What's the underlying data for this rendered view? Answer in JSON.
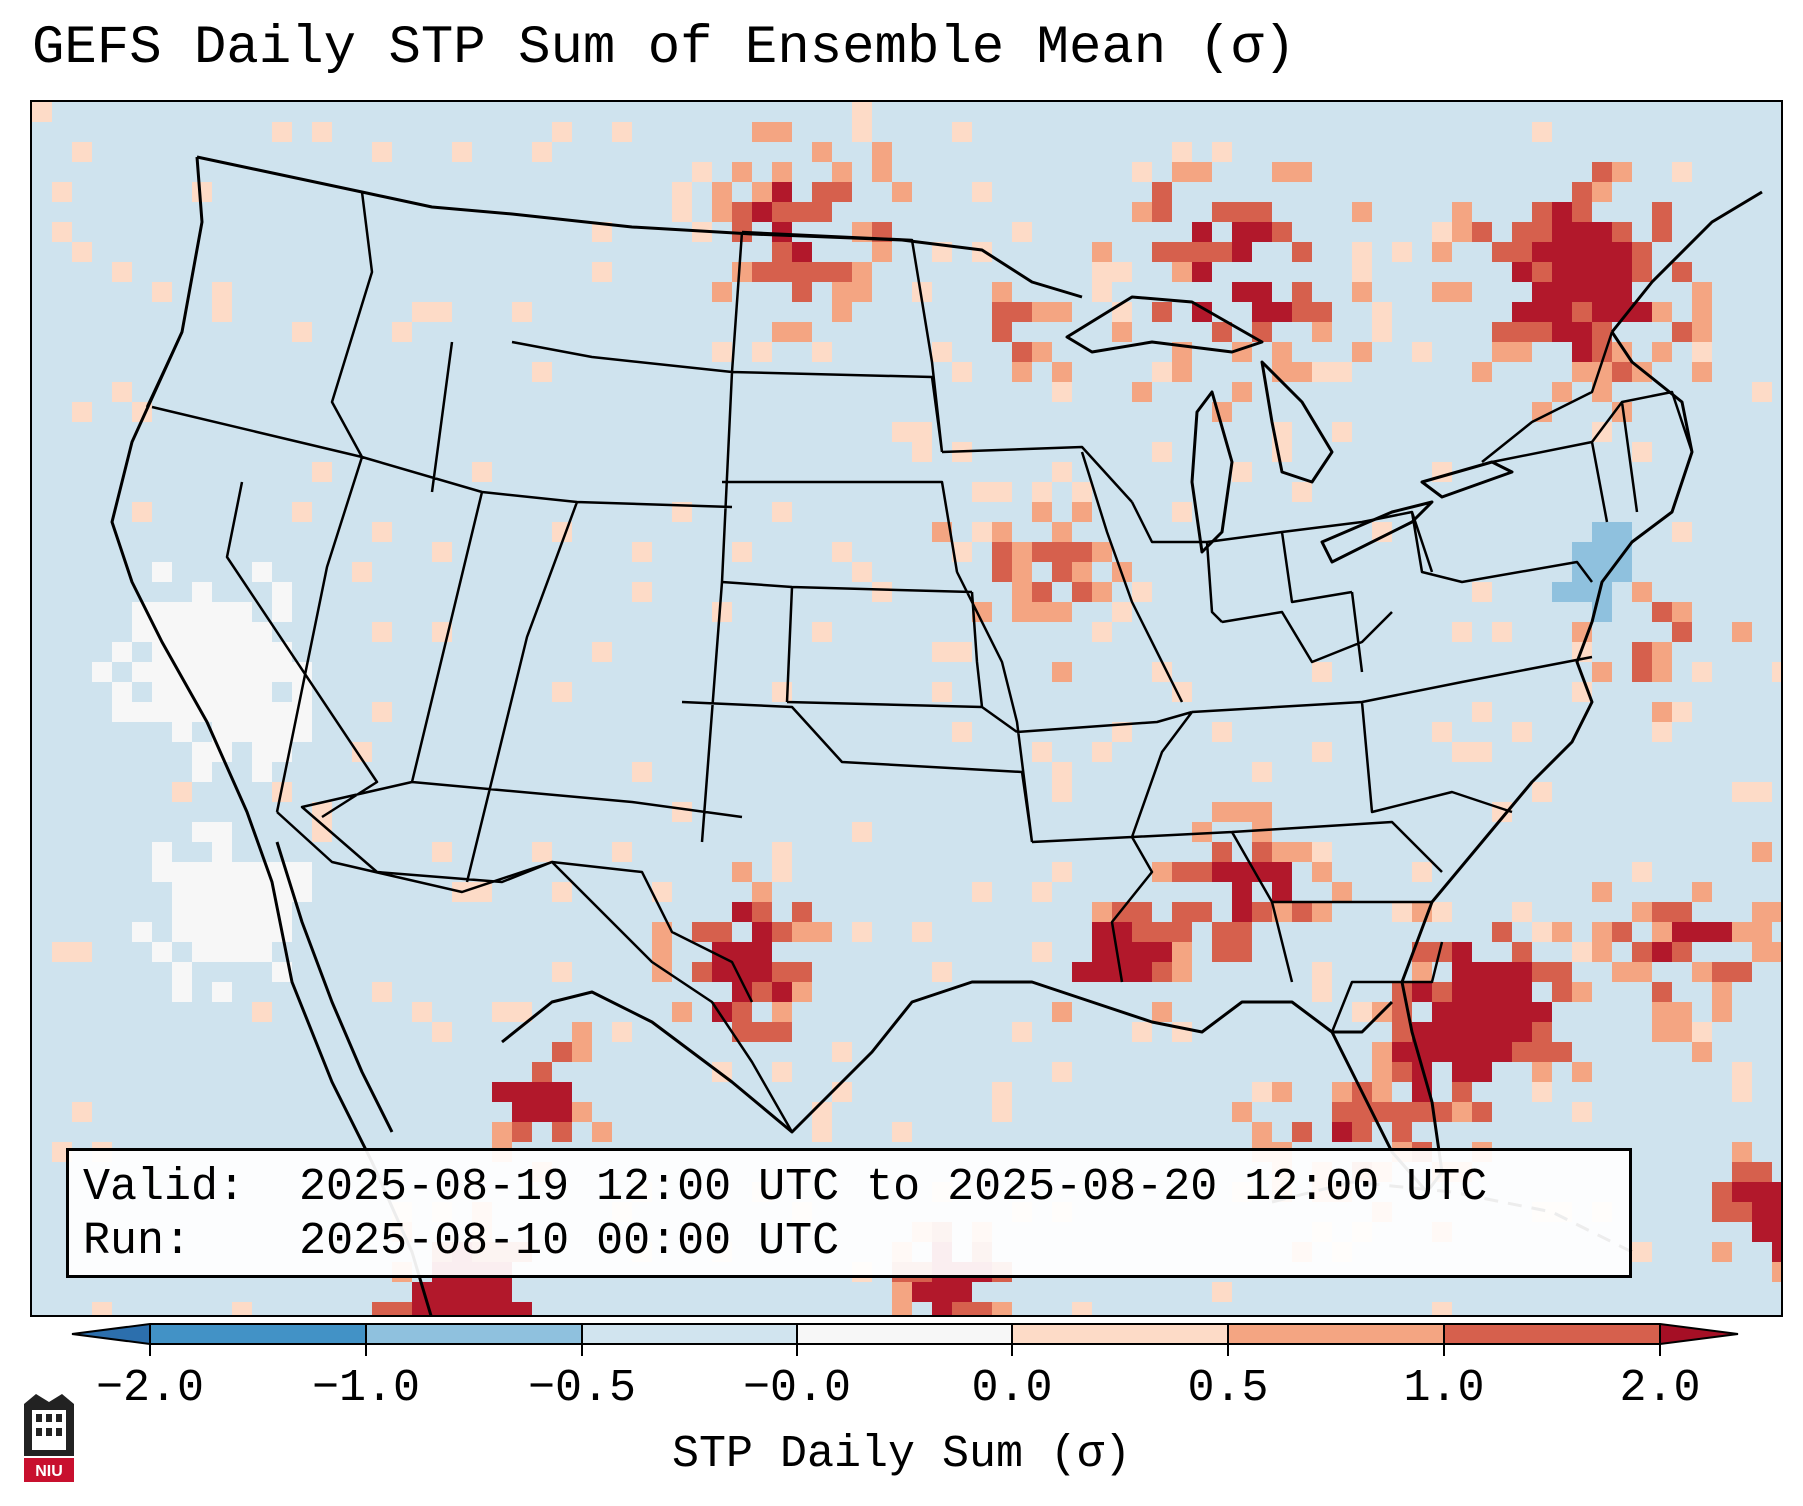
{
  "title": "GEFS Daily STP Sum of Ensemble Mean (σ)",
  "info": {
    "valid_label": "Valid:",
    "valid_value": "2025-08-19 12:00 UTC to 2025-08-20 12:00 UTC",
    "run_label": "Run:",
    "run_value": "2025-08-10 00:00 UTC"
  },
  "colorbar": {
    "label": "STP Daily Sum (σ)",
    "ticks": [
      "−2.0",
      "−1.0",
      "−0.5",
      "−0.0",
      "0.0",
      "0.5",
      "1.0",
      "2.0"
    ],
    "colors": [
      "#4292c6",
      "#8fc1de",
      "#d1e4ef",
      "#f7f7f7",
      "#fddbc7",
      "#f4a582",
      "#d6604d",
      "#b2182b"
    ],
    "under_color": "#2c6fad",
    "over_color": "#a50f25"
  },
  "map": {
    "background_color": "#cfe3ee",
    "land_field_color": "#d1e4ef"
  },
  "logo": {
    "text": "NIU"
  }
}
